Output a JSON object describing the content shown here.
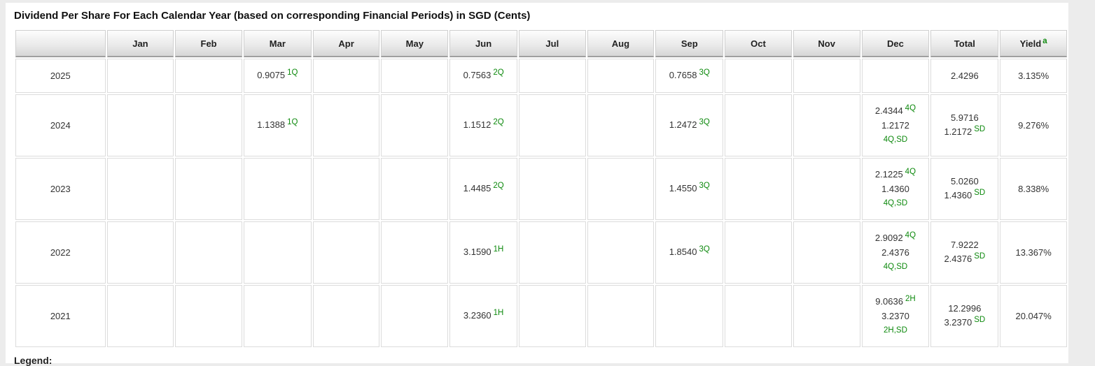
{
  "page": {
    "title": "Dividend Per Share For Each Calendar Year (based on corresponding Financial Periods) in SGD (Cents)",
    "legend_label": "Legend:"
  },
  "colors": {
    "tag_green": "#0f8a0f",
    "header_gradient_top": "#fdfdfd",
    "header_gradient_bottom": "#d6d6d6",
    "year_cell_bg": "#f2f2f2",
    "hatch_stripe": "#e6e6e6"
  },
  "table": {
    "columns": [
      {
        "key": "year",
        "label": ""
      },
      {
        "key": "Jan",
        "label": "Jan"
      },
      {
        "key": "Feb",
        "label": "Feb"
      },
      {
        "key": "Mar",
        "label": "Mar"
      },
      {
        "key": "Apr",
        "label": "Apr"
      },
      {
        "key": "May",
        "label": "May"
      },
      {
        "key": "Jun",
        "label": "Jun"
      },
      {
        "key": "Jul",
        "label": "Jul"
      },
      {
        "key": "Aug",
        "label": "Aug"
      },
      {
        "key": "Sep",
        "label": "Sep"
      },
      {
        "key": "Oct",
        "label": "Oct"
      },
      {
        "key": "Nov",
        "label": "Nov"
      },
      {
        "key": "Dec",
        "label": "Dec"
      },
      {
        "key": "total",
        "label": "Total"
      },
      {
        "key": "yield",
        "label": "Yield",
        "sup": "a"
      }
    ],
    "month_keys": [
      "Jan",
      "Feb",
      "Mar",
      "Apr",
      "May",
      "Jun",
      "Jul",
      "Aug",
      "Sep",
      "Oct",
      "Nov",
      "Dec"
    ],
    "rows": [
      {
        "year": "2025",
        "months": {
          "Mar": [
            {
              "v": "0.9075",
              "t": "1Q"
            }
          ],
          "Jun": [
            {
              "v": "0.7563",
              "t": "2Q"
            }
          ],
          "Sep": [
            {
              "v": "0.7658",
              "t": "3Q"
            }
          ]
        },
        "total": [
          {
            "v": "2.4296"
          }
        ],
        "yield": "3.135%"
      },
      {
        "year": "2024",
        "months": {
          "Mar": [
            {
              "v": "1.1388",
              "t": "1Q"
            }
          ],
          "Jun": [
            {
              "v": "1.1512",
              "t": "2Q"
            }
          ],
          "Sep": [
            {
              "v": "1.2472",
              "t": "3Q"
            }
          ],
          "Dec": [
            {
              "v": "2.4344",
              "t": "4Q"
            },
            {
              "v": "1.2172",
              "t": "4Q,SD",
              "wrap": true
            }
          ]
        },
        "total": [
          {
            "v": "5.9716"
          },
          {
            "v": "1.2172",
            "t": "SD"
          }
        ],
        "yield": "9.276%"
      },
      {
        "year": "2023",
        "months": {
          "Jun": [
            {
              "v": "1.4485",
              "t": "2Q"
            }
          ],
          "Sep": [
            {
              "v": "1.4550",
              "t": "3Q"
            }
          ],
          "Dec": [
            {
              "v": "2.1225",
              "t": "4Q"
            },
            {
              "v": "1.4360",
              "t": "4Q,SD",
              "wrap": true
            }
          ]
        },
        "total": [
          {
            "v": "5.0260"
          },
          {
            "v": "1.4360",
            "t": "SD"
          }
        ],
        "yield": "8.338%"
      },
      {
        "year": "2022",
        "months": {
          "Jun": [
            {
              "v": "3.1590",
              "t": "1H"
            }
          ],
          "Sep": [
            {
              "v": "1.8540",
              "t": "3Q"
            }
          ],
          "Dec": [
            {
              "v": "2.9092",
              "t": "4Q"
            },
            {
              "v": "2.4376",
              "t": "4Q,SD",
              "wrap": true
            }
          ]
        },
        "total": [
          {
            "v": "7.9222"
          },
          {
            "v": "2.4376",
            "t": "SD"
          }
        ],
        "yield": "13.367%"
      },
      {
        "year": "2021",
        "months": {
          "Jun": [
            {
              "v": "3.2360",
              "t": "1H"
            }
          ],
          "Dec": [
            {
              "v": "9.0636",
              "t": "2H"
            },
            {
              "v": "3.2370",
              "t": "2H,SD",
              "wrap": true
            }
          ]
        },
        "total": [
          {
            "v": "12.2996"
          },
          {
            "v": "3.2370",
            "t": "SD"
          }
        ],
        "yield": "20.047%"
      }
    ]
  }
}
